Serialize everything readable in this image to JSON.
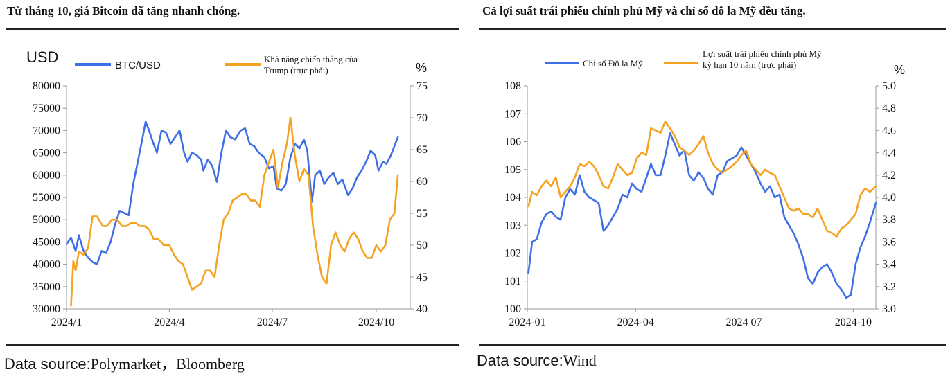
{
  "colors": {
    "blue": "#3f6fe6",
    "orange": "#f4a21f",
    "axis": "#9a9a9a",
    "rule": "#222222"
  },
  "left": {
    "title": "Từ tháng 10, giá Bitcoin đã tăng nhanh chóng.",
    "source_label": "Data source:",
    "source_value": "Polymarket，Bloomberg"
  },
  "right": {
    "title": "Cả lợi suất trái phiếu chính phủ Mỹ và chỉ số đô la Mỹ đều tăng.",
    "source_label": "Data source:",
    "source_value": "Wind"
  },
  "chart_data": [
    {
      "type": "line",
      "left_unit": "USD",
      "right_unit": "%",
      "legend": {
        "placement": "top"
      },
      "grid": false,
      "x_ticks": [
        "2024/1",
        "2024/4",
        "2024/7",
        "2024/10"
      ],
      "x_tick_dates": [
        "2024-01-01",
        "2024-04-01",
        "2024-07-01",
        "2024-10-01"
      ],
      "xlim": [
        "2024-01-01",
        "2024-10-31"
      ],
      "y_left": {
        "ylim": [
          30000,
          80000
        ],
        "ticks": [
          30000,
          35000,
          40000,
          45000,
          50000,
          55000,
          60000,
          65000,
          70000,
          75000,
          80000
        ]
      },
      "y_right": {
        "ylim": [
          40,
          75
        ],
        "ticks": [
          40,
          45,
          50,
          55,
          60,
          65,
          70,
          75
        ]
      },
      "series": [
        {
          "name": "BTC/USD",
          "axis": "left",
          "color": "#3f6fe6",
          "x": [
            "2024-01-01",
            "2024-01-05",
            "2024-01-09",
            "2024-01-12",
            "2024-01-16",
            "2024-01-20",
            "2024-01-24",
            "2024-01-28",
            "2024-02-01",
            "2024-02-05",
            "2024-02-09",
            "2024-02-13",
            "2024-02-17",
            "2024-02-21",
            "2024-02-25",
            "2024-02-29",
            "2024-03-04",
            "2024-03-08",
            "2024-03-11",
            "2024-03-14",
            "2024-03-18",
            "2024-03-21",
            "2024-03-25",
            "2024-03-29",
            "2024-04-02",
            "2024-04-06",
            "2024-04-10",
            "2024-04-14",
            "2024-04-17",
            "2024-04-21",
            "2024-04-25",
            "2024-04-29",
            "2024-05-01",
            "2024-05-05",
            "2024-05-09",
            "2024-05-13",
            "2024-05-17",
            "2024-05-21",
            "2024-05-25",
            "2024-05-29",
            "2024-06-03",
            "2024-06-07",
            "2024-06-11",
            "2024-06-15",
            "2024-06-19",
            "2024-06-24",
            "2024-06-28",
            "2024-07-02",
            "2024-07-05",
            "2024-07-09",
            "2024-07-13",
            "2024-07-17",
            "2024-07-21",
            "2024-07-25",
            "2024-07-29",
            "2024-08-01",
            "2024-08-05",
            "2024-08-08",
            "2024-08-12",
            "2024-08-16",
            "2024-08-20",
            "2024-08-24",
            "2024-08-28",
            "2024-09-01",
            "2024-09-06",
            "2024-09-10",
            "2024-09-14",
            "2024-09-18",
            "2024-09-22",
            "2024-09-26",
            "2024-09-30",
            "2024-10-03",
            "2024-10-07",
            "2024-10-10",
            "2024-10-14",
            "2024-10-17",
            "2024-10-20"
          ],
          "values": [
            44500,
            46000,
            43000,
            46500,
            43000,
            41500,
            40500,
            40000,
            43000,
            42500,
            45000,
            49000,
            52000,
            51500,
            51000,
            58000,
            63000,
            68000,
            72000,
            70000,
            67000,
            65000,
            70000,
            69500,
            67000,
            68500,
            70000,
            65000,
            63000,
            65000,
            64500,
            63500,
            61000,
            63500,
            62000,
            58500,
            65000,
            70000,
            68500,
            68000,
            70000,
            70500,
            67000,
            66500,
            65000,
            64000,
            61500,
            62000,
            57000,
            56500,
            58000,
            64000,
            67000,
            66000,
            68000,
            65500,
            54000,
            60000,
            61000,
            58000,
            59500,
            60500,
            58000,
            59000,
            55500,
            57000,
            59500,
            61000,
            63000,
            65500,
            64500,
            61000,
            63000,
            62500,
            64500,
            66500,
            68500
          ]
        },
        {
          "name": "Khả năng chiến thắng của Trump (trục phải)",
          "axis": "right",
          "color": "#f4a21f",
          "x": [
            "2024-01-05",
            "2024-01-07",
            "2024-01-09",
            "2024-01-12",
            "2024-01-16",
            "2024-01-20",
            "2024-01-24",
            "2024-01-28",
            "2024-02-02",
            "2024-02-06",
            "2024-02-10",
            "2024-02-15",
            "2024-02-19",
            "2024-02-23",
            "2024-02-27",
            "2024-03-02",
            "2024-03-06",
            "2024-03-10",
            "2024-03-14",
            "2024-03-18",
            "2024-03-22",
            "2024-03-27",
            "2024-04-01",
            "2024-04-05",
            "2024-04-09",
            "2024-04-13",
            "2024-04-17",
            "2024-04-21",
            "2024-04-25",
            "2024-04-29",
            "2024-05-03",
            "2024-05-07",
            "2024-05-11",
            "2024-05-15",
            "2024-05-19",
            "2024-05-23",
            "2024-05-27",
            "2024-05-31",
            "2024-06-04",
            "2024-06-08",
            "2024-06-12",
            "2024-06-16",
            "2024-06-20",
            "2024-06-24",
            "2024-06-28",
            "2024-07-02",
            "2024-07-06",
            "2024-07-10",
            "2024-07-14",
            "2024-07-17",
            "2024-07-21",
            "2024-07-25",
            "2024-07-29",
            "2024-08-02",
            "2024-08-06",
            "2024-08-10",
            "2024-08-14",
            "2024-08-18",
            "2024-08-22",
            "2024-08-26",
            "2024-08-30",
            "2024-09-03",
            "2024-09-07",
            "2024-09-11",
            "2024-09-15",
            "2024-09-19",
            "2024-09-23",
            "2024-09-27",
            "2024-10-01",
            "2024-10-05",
            "2024-10-09",
            "2024-10-13",
            "2024-10-17",
            "2024-10-20"
          ],
          "values": [
            40.5,
            47.5,
            46,
            49,
            48.5,
            49.5,
            54.5,
            54.5,
            53,
            53,
            54,
            54,
            53,
            53,
            53.5,
            53.5,
            53,
            53,
            52.5,
            51,
            51,
            50,
            50,
            48.5,
            47.5,
            47,
            45,
            43,
            43.5,
            44,
            46,
            46,
            45,
            50,
            54,
            55,
            57,
            57.5,
            58,
            58,
            57,
            57,
            56,
            61,
            63,
            65,
            59,
            63,
            66,
            70,
            64,
            60,
            62,
            61,
            53,
            48.5,
            45,
            44,
            50,
            52,
            50,
            49,
            51,
            52,
            51,
            49,
            48,
            48,
            50,
            49,
            50,
            54,
            55,
            61
          ]
        }
      ]
    },
    {
      "type": "line",
      "right_unit": "%",
      "legend": {
        "placement": "top"
      },
      "grid": false,
      "x_ticks": [
        "2024-01",
        "2024-04",
        "2024 07",
        "2024-10"
      ],
      "x_tick_dates": [
        "2024-01-01",
        "2024-04-01",
        "2024-07-01",
        "2024-10-01"
      ],
      "xlim": [
        "2024-01-01",
        "2024-10-20"
      ],
      "y_left": {
        "ylim": [
          100,
          108
        ],
        "ticks": [
          100,
          101,
          102,
          103,
          104,
          105,
          106,
          107,
          108
        ]
      },
      "y_right": {
        "ylim": [
          3.0,
          5.0
        ],
        "ticks": [
          "3.0",
          "3.2",
          "3.4",
          "3.6",
          "3.8",
          "4.0",
          "4.2",
          "4.4",
          "4.6",
          "4.8",
          "5.0"
        ]
      },
      "series": [
        {
          "name": "Chỉ số Đô la Mỹ",
          "axis": "left",
          "color": "#3f6fe6",
          "x": [
            "2024-01-02",
            "2024-01-05",
            "2024-01-09",
            "2024-01-13",
            "2024-01-17",
            "2024-01-21",
            "2024-01-25",
            "2024-01-29",
            "2024-02-02",
            "2024-02-06",
            "2024-02-10",
            "2024-02-14",
            "2024-02-18",
            "2024-02-22",
            "2024-02-26",
            "2024-03-01",
            "2024-03-05",
            "2024-03-09",
            "2024-03-13",
            "2024-03-17",
            "2024-03-21",
            "2024-03-25",
            "2024-03-29",
            "2024-04-02",
            "2024-04-06",
            "2024-04-10",
            "2024-04-14",
            "2024-04-18",
            "2024-04-22",
            "2024-04-26",
            "2024-04-30",
            "2024-05-04",
            "2024-05-08",
            "2024-05-12",
            "2024-05-16",
            "2024-05-20",
            "2024-05-24",
            "2024-05-28",
            "2024-06-01",
            "2024-06-05",
            "2024-06-09",
            "2024-06-13",
            "2024-06-17",
            "2024-06-21",
            "2024-06-25",
            "2024-06-29",
            "2024-07-03",
            "2024-07-07",
            "2024-07-11",
            "2024-07-15",
            "2024-07-19",
            "2024-07-23",
            "2024-07-27",
            "2024-07-31",
            "2024-08-04",
            "2024-08-08",
            "2024-08-12",
            "2024-08-16",
            "2024-08-20",
            "2024-08-24",
            "2024-08-28",
            "2024-09-01",
            "2024-09-05",
            "2024-09-09",
            "2024-09-13",
            "2024-09-17",
            "2024-09-21",
            "2024-09-25",
            "2024-09-29",
            "2024-10-03",
            "2024-10-07",
            "2024-10-11",
            "2024-10-15",
            "2024-10-20"
          ],
          "values": [
            101.3,
            102.4,
            102.5,
            103.1,
            103.4,
            103.5,
            103.3,
            103.2,
            104.0,
            104.3,
            104.1,
            104.8,
            104.2,
            104.0,
            103.9,
            103.8,
            102.8,
            103.0,
            103.3,
            103.6,
            104.1,
            104.0,
            104.5,
            104.3,
            104.2,
            104.7,
            105.2,
            104.8,
            104.8,
            105.5,
            106.3,
            105.9,
            105.5,
            105.7,
            104.8,
            104.6,
            104.9,
            104.7,
            104.3,
            104.1,
            104.8,
            104.9,
            105.3,
            105.4,
            105.5,
            105.8,
            105.5,
            105.2,
            104.9,
            104.5,
            104.2,
            104.4,
            104.0,
            104.1,
            103.3,
            103.0,
            102.7,
            102.3,
            101.8,
            101.1,
            100.9,
            101.3,
            101.5,
            101.6,
            101.3,
            100.9,
            100.7,
            100.4,
            100.5,
            101.6,
            102.2,
            102.6,
            103.1,
            103.8
          ]
        },
        {
          "name": "Lợi suất trái phiếu chính phủ Mỹ kỳ hạn 10 năm (trực phải)",
          "axis": "right",
          "color": "#f4a21f",
          "x": [
            "2024-01-02",
            "2024-01-05",
            "2024-01-09",
            "2024-01-13",
            "2024-01-17",
            "2024-01-21",
            "2024-01-25",
            "2024-01-29",
            "2024-02-02",
            "2024-02-06",
            "2024-02-10",
            "2024-02-14",
            "2024-02-18",
            "2024-02-22",
            "2024-02-26",
            "2024-03-01",
            "2024-03-05",
            "2024-03-09",
            "2024-03-13",
            "2024-03-17",
            "2024-03-21",
            "2024-03-25",
            "2024-03-29",
            "2024-04-02",
            "2024-04-06",
            "2024-04-10",
            "2024-04-14",
            "2024-04-18",
            "2024-04-22",
            "2024-04-26",
            "2024-04-30",
            "2024-05-04",
            "2024-05-08",
            "2024-05-12",
            "2024-05-16",
            "2024-05-20",
            "2024-05-24",
            "2024-05-28",
            "2024-06-01",
            "2024-06-05",
            "2024-06-09",
            "2024-06-13",
            "2024-06-17",
            "2024-06-21",
            "2024-06-25",
            "2024-06-29",
            "2024-07-03",
            "2024-07-07",
            "2024-07-11",
            "2024-07-15",
            "2024-07-19",
            "2024-07-23",
            "2024-07-27",
            "2024-07-31",
            "2024-08-04",
            "2024-08-08",
            "2024-08-12",
            "2024-08-16",
            "2024-08-20",
            "2024-08-24",
            "2024-08-28",
            "2024-09-01",
            "2024-09-05",
            "2024-09-09",
            "2024-09-13",
            "2024-09-17",
            "2024-09-21",
            "2024-09-25",
            "2024-09-29",
            "2024-10-03",
            "2024-10-07",
            "2024-10-11",
            "2024-10-15",
            "2024-10-20"
          ],
          "values": [
            3.92,
            4.05,
            4.02,
            4.1,
            4.15,
            4.1,
            4.18,
            4.0,
            4.05,
            4.1,
            4.18,
            4.3,
            4.28,
            4.32,
            4.28,
            4.2,
            4.1,
            4.08,
            4.18,
            4.3,
            4.25,
            4.2,
            4.22,
            4.35,
            4.4,
            4.38,
            4.62,
            4.6,
            4.58,
            4.68,
            4.62,
            4.55,
            4.45,
            4.42,
            4.38,
            4.42,
            4.48,
            4.55,
            4.4,
            4.3,
            4.25,
            4.22,
            4.25,
            4.28,
            4.32,
            4.38,
            4.42,
            4.3,
            4.25,
            4.2,
            4.25,
            4.22,
            4.2,
            4.1,
            4.0,
            3.9,
            3.88,
            3.9,
            3.85,
            3.85,
            3.82,
            3.9,
            3.8,
            3.7,
            3.68,
            3.65,
            3.72,
            3.75,
            3.8,
            3.85,
            4.02,
            4.08,
            4.05,
            4.1
          ]
        }
      ]
    }
  ]
}
